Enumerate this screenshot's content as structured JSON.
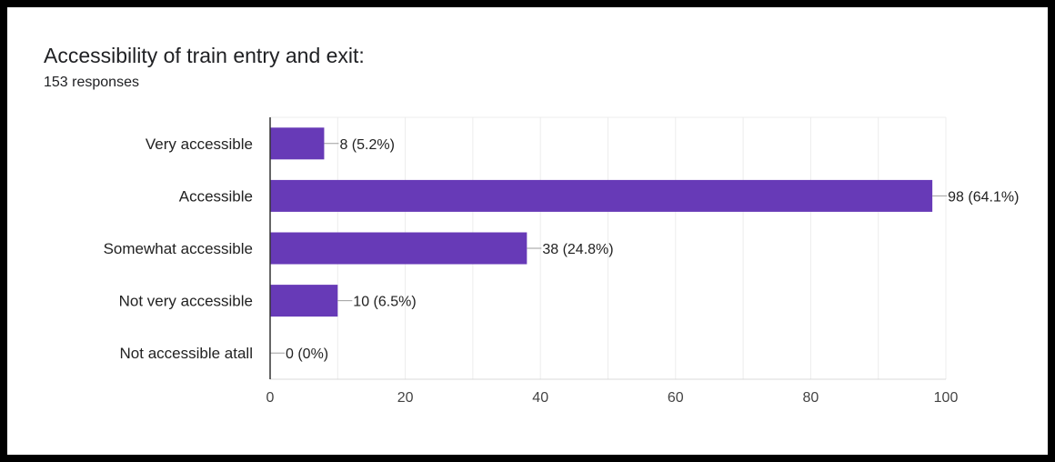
{
  "header": {
    "title": "Accessibility of train entry and exit:",
    "responses": "153 responses"
  },
  "chart_data": {
    "type": "bar",
    "orientation": "horizontal",
    "categories": [
      "Very accessible",
      "Accessible",
      "Somewhat accessible",
      "Not very accessible",
      "Not accessible atall"
    ],
    "values": [
      8,
      98,
      38,
      10,
      0
    ],
    "data_labels": [
      "8 (5.2%)",
      "98 (64.1%)",
      "38 (24.8%)",
      "10 (6.5%)",
      "0 (0%)"
    ],
    "xlim": [
      0,
      100
    ],
    "x_ticks": [
      0,
      20,
      40,
      60,
      80,
      100
    ],
    "grid": true,
    "bar_color": "#673ab7"
  }
}
